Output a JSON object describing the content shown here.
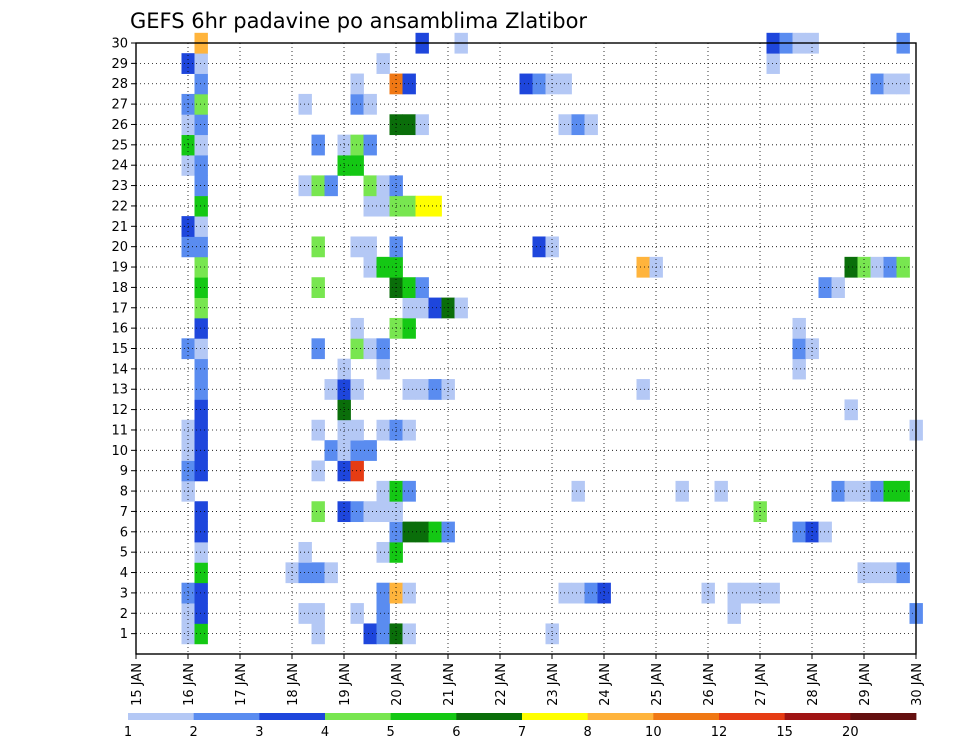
{
  "chart_data": {
    "type": "heatmap",
    "title": "GEFS 6hr padavine po ansamblima Zlatibor",
    "xlabel": "",
    "ylabel": "",
    "x_tick_labels": [
      "15 JAN",
      "16 JAN",
      "17 JAN",
      "18 JAN",
      "19 JAN",
      "20 JAN",
      "21 JAN",
      "22 JAN",
      "23 JAN",
      "24 JAN",
      "25 JAN",
      "26 JAN",
      "27 JAN",
      "28 JAN",
      "29 JAN",
      "30 JAN"
    ],
    "x_range_days": [
      15,
      30
    ],
    "y_tick_labels": [
      1,
      2,
      3,
      4,
      5,
      6,
      7,
      8,
      9,
      10,
      11,
      12,
      13,
      14,
      15,
      16,
      17,
      18,
      19,
      20,
      21,
      22,
      23,
      24,
      25,
      26,
      27,
      28,
      29,
      30
    ],
    "y_range_members": [
      0,
      30
    ],
    "grid": "dotted",
    "legend": {
      "placement": "bottom",
      "levels": [
        "1",
        "2",
        "3",
        "4",
        "5",
        "6",
        "7",
        "8",
        "10",
        "12",
        "15",
        "20"
      ],
      "colors": [
        "#b4c8f5",
        "#5a8cf0",
        "#1e46dc",
        "#78e650",
        "#14c814",
        "#0a6e0a",
        "#ffff00",
        "#ffb43c",
        "#f07814",
        "#e63c14",
        "#a01414",
        "#641010"
      ]
    },
    "cells_description": "value = color class index (1..12) per 6-hour step per ensemble member",
    "cells": [
      {
        "member": 1,
        "day": 16.0,
        "cls": 1
      },
      {
        "member": 1,
        "day": 16.25,
        "cls": 5
      },
      {
        "member": 1,
        "day": 18.5,
        "cls": 1
      },
      {
        "member": 1,
        "day": 19.5,
        "cls": 3
      },
      {
        "member": 1,
        "day": 19.75,
        "cls": 2
      },
      {
        "member": 1,
        "day": 20.0,
        "cls": 6
      },
      {
        "member": 1,
        "day": 20.25,
        "cls": 1
      },
      {
        "member": 1,
        "day": 23.0,
        "cls": 1
      },
      {
        "member": 2,
        "day": 16.0,
        "cls": 1
      },
      {
        "member": 2,
        "day": 16.25,
        "cls": 3
      },
      {
        "member": 2,
        "day": 18.25,
        "cls": 1
      },
      {
        "member": 2,
        "day": 18.5,
        "cls": 1
      },
      {
        "member": 2,
        "day": 19.25,
        "cls": 1
      },
      {
        "member": 2,
        "day": 19.75,
        "cls": 2
      },
      {
        "member": 2,
        "day": 26.5,
        "cls": 1
      },
      {
        "member": 2,
        "day": 30.0,
        "cls": 2
      },
      {
        "member": 3,
        "day": 16.0,
        "cls": 2
      },
      {
        "member": 3,
        "day": 16.25,
        "cls": 3
      },
      {
        "member": 3,
        "day": 19.75,
        "cls": 2
      },
      {
        "member": 3,
        "day": 20.0,
        "cls": 8
      },
      {
        "member": 3,
        "day": 20.25,
        "cls": 1
      },
      {
        "member": 3,
        "day": 23.25,
        "cls": 1
      },
      {
        "member": 3,
        "day": 23.5,
        "cls": 1
      },
      {
        "member": 3,
        "day": 23.75,
        "cls": 2
      },
      {
        "member": 3,
        "day": 24.0,
        "cls": 3
      },
      {
        "member": 3,
        "day": 26.0,
        "cls": 1
      },
      {
        "member": 3,
        "day": 26.5,
        "cls": 1
      },
      {
        "member": 3,
        "day": 26.75,
        "cls": 1
      },
      {
        "member": 3,
        "day": 27.0,
        "cls": 1
      },
      {
        "member": 3,
        "day": 27.25,
        "cls": 1
      },
      {
        "member": 4,
        "day": 16.25,
        "cls": 5
      },
      {
        "member": 4,
        "day": 18.0,
        "cls": 1
      },
      {
        "member": 4,
        "day": 18.25,
        "cls": 2
      },
      {
        "member": 4,
        "day": 18.5,
        "cls": 2
      },
      {
        "member": 4,
        "day": 18.75,
        "cls": 1
      },
      {
        "member": 4,
        "day": 29.0,
        "cls": 1
      },
      {
        "member": 4,
        "day": 29.25,
        "cls": 1
      },
      {
        "member": 4,
        "day": 29.5,
        "cls": 1
      },
      {
        "member": 4,
        "day": 29.75,
        "cls": 2
      },
      {
        "member": 5,
        "day": 16.25,
        "cls": 1
      },
      {
        "member": 5,
        "day": 18.25,
        "cls": 1
      },
      {
        "member": 5,
        "day": 19.75,
        "cls": 1
      },
      {
        "member": 5,
        "day": 20.0,
        "cls": 5
      },
      {
        "member": 6,
        "day": 16.25,
        "cls": 3
      },
      {
        "member": 6,
        "day": 20.0,
        "cls": 2
      },
      {
        "member": 6,
        "day": 20.25,
        "cls": 6
      },
      {
        "member": 6,
        "day": 20.5,
        "cls": 6
      },
      {
        "member": 6,
        "day": 20.75,
        "cls": 5
      },
      {
        "member": 6,
        "day": 21.0,
        "cls": 2
      },
      {
        "member": 6,
        "day": 27.75,
        "cls": 2
      },
      {
        "member": 6,
        "day": 28.0,
        "cls": 3
      },
      {
        "member": 6,
        "day": 28.25,
        "cls": 1
      },
      {
        "member": 7,
        "day": 16.25,
        "cls": 3
      },
      {
        "member": 7,
        "day": 18.5,
        "cls": 4
      },
      {
        "member": 7,
        "day": 19.0,
        "cls": 3
      },
      {
        "member": 7,
        "day": 19.25,
        "cls": 2
      },
      {
        "member": 7,
        "day": 19.5,
        "cls": 1
      },
      {
        "member": 7,
        "day": 19.75,
        "cls": 1
      },
      {
        "member": 7,
        "day": 20.0,
        "cls": 1
      },
      {
        "member": 7,
        "day": 27.0,
        "cls": 4
      },
      {
        "member": 8,
        "day": 16.0,
        "cls": 1
      },
      {
        "member": 8,
        "day": 19.75,
        "cls": 1
      },
      {
        "member": 8,
        "day": 20.0,
        "cls": 5
      },
      {
        "member": 8,
        "day": 20.25,
        "cls": 2
      },
      {
        "member": 8,
        "day": 23.5,
        "cls": 1
      },
      {
        "member": 8,
        "day": 25.5,
        "cls": 1
      },
      {
        "member": 8,
        "day": 26.25,
        "cls": 1
      },
      {
        "member": 8,
        "day": 28.5,
        "cls": 2
      },
      {
        "member": 8,
        "day": 28.75,
        "cls": 1
      },
      {
        "member": 8,
        "day": 29.0,
        "cls": 1
      },
      {
        "member": 8,
        "day": 29.25,
        "cls": 2
      },
      {
        "member": 8,
        "day": 29.5,
        "cls": 5
      },
      {
        "member": 8,
        "day": 29.75,
        "cls": 5
      },
      {
        "member": 9,
        "day": 16.0,
        "cls": 2
      },
      {
        "member": 9,
        "day": 16.25,
        "cls": 3
      },
      {
        "member": 9,
        "day": 18.5,
        "cls": 1
      },
      {
        "member": 9,
        "day": 19.0,
        "cls": 3
      },
      {
        "member": 9,
        "day": 19.25,
        "cls": 10
      },
      {
        "member": 10,
        "day": 16.0,
        "cls": 1
      },
      {
        "member": 10,
        "day": 16.25,
        "cls": 3
      },
      {
        "member": 10,
        "day": 18.75,
        "cls": 2
      },
      {
        "member": 10,
        "day": 19.0,
        "cls": 1
      },
      {
        "member": 10,
        "day": 19.25,
        "cls": 2
      },
      {
        "member": 10,
        "day": 19.5,
        "cls": 2
      },
      {
        "member": 11,
        "day": 16.0,
        "cls": 1
      },
      {
        "member": 11,
        "day": 16.25,
        "cls": 3
      },
      {
        "member": 11,
        "day": 18.5,
        "cls": 1
      },
      {
        "member": 11,
        "day": 19.0,
        "cls": 1
      },
      {
        "member": 11,
        "day": 19.25,
        "cls": 1
      },
      {
        "member": 11,
        "day": 19.75,
        "cls": 1
      },
      {
        "member": 11,
        "day": 20.0,
        "cls": 2
      },
      {
        "member": 11,
        "day": 20.25,
        "cls": 1
      },
      {
        "member": 11,
        "day": 30.0,
        "cls": 1
      },
      {
        "member": 12,
        "day": 16.25,
        "cls": 3
      },
      {
        "member": 12,
        "day": 19.0,
        "cls": 6
      },
      {
        "member": 12,
        "day": 28.75,
        "cls": 1
      },
      {
        "member": 13,
        "day": 16.25,
        "cls": 2
      },
      {
        "member": 13,
        "day": 18.75,
        "cls": 1
      },
      {
        "member": 13,
        "day": 19.0,
        "cls": 3
      },
      {
        "member": 13,
        "day": 19.25,
        "cls": 1
      },
      {
        "member": 13,
        "day": 20.25,
        "cls": 1
      },
      {
        "member": 13,
        "day": 20.5,
        "cls": 1
      },
      {
        "member": 13,
        "day": 20.75,
        "cls": 2
      },
      {
        "member": 13,
        "day": 21.0,
        "cls": 1
      },
      {
        "member": 13,
        "day": 24.75,
        "cls": 1
      },
      {
        "member": 14,
        "day": 16.25,
        "cls": 2
      },
      {
        "member": 14,
        "day": 19.0,
        "cls": 1
      },
      {
        "member": 14,
        "day": 19.75,
        "cls": 1
      },
      {
        "member": 14,
        "day": 27.75,
        "cls": 1
      },
      {
        "member": 15,
        "day": 16.0,
        "cls": 2
      },
      {
        "member": 15,
        "day": 16.25,
        "cls": 1
      },
      {
        "member": 15,
        "day": 18.5,
        "cls": 2
      },
      {
        "member": 15,
        "day": 19.25,
        "cls": 4
      },
      {
        "member": 15,
        "day": 19.5,
        "cls": 1
      },
      {
        "member": 15,
        "day": 19.75,
        "cls": 2
      },
      {
        "member": 15,
        "day": 27.75,
        "cls": 2
      },
      {
        "member": 15,
        "day": 28.0,
        "cls": 1
      },
      {
        "member": 16,
        "day": 16.25,
        "cls": 3
      },
      {
        "member": 16,
        "day": 19.25,
        "cls": 1
      },
      {
        "member": 16,
        "day": 20.0,
        "cls": 4
      },
      {
        "member": 16,
        "day": 20.25,
        "cls": 5
      },
      {
        "member": 16,
        "day": 27.75,
        "cls": 1
      },
      {
        "member": 17,
        "day": 16.25,
        "cls": 4
      },
      {
        "member": 17,
        "day": 20.25,
        "cls": 1
      },
      {
        "member": 17,
        "day": 20.5,
        "cls": 1
      },
      {
        "member": 17,
        "day": 20.75,
        "cls": 3
      },
      {
        "member": 17,
        "day": 21.0,
        "cls": 6
      },
      {
        "member": 17,
        "day": 21.25,
        "cls": 1
      },
      {
        "member": 18,
        "day": 16.25,
        "cls": 5
      },
      {
        "member": 18,
        "day": 18.5,
        "cls": 4
      },
      {
        "member": 18,
        "day": 20.0,
        "cls": 6
      },
      {
        "member": 18,
        "day": 20.25,
        "cls": 5
      },
      {
        "member": 18,
        "day": 20.5,
        "cls": 2
      },
      {
        "member": 18,
        "day": 28.25,
        "cls": 2
      },
      {
        "member": 18,
        "day": 28.5,
        "cls": 1
      },
      {
        "member": 19,
        "day": 16.25,
        "cls": 4
      },
      {
        "member": 19,
        "day": 19.5,
        "cls": 1
      },
      {
        "member": 19,
        "day": 19.75,
        "cls": 5
      },
      {
        "member": 19,
        "day": 20.0,
        "cls": 5
      },
      {
        "member": 19,
        "day": 24.75,
        "cls": 8
      },
      {
        "member": 19,
        "day": 25.0,
        "cls": 1
      },
      {
        "member": 19,
        "day": 28.75,
        "cls": 6
      },
      {
        "member": 19,
        "day": 29.0,
        "cls": 4
      },
      {
        "member": 19,
        "day": 29.25,
        "cls": 1
      },
      {
        "member": 19,
        "day": 29.5,
        "cls": 2
      },
      {
        "member": 19,
        "day": 29.75,
        "cls": 4
      },
      {
        "member": 20,
        "day": 16.0,
        "cls": 2
      },
      {
        "member": 20,
        "day": 16.25,
        "cls": 2
      },
      {
        "member": 20,
        "day": 18.5,
        "cls": 4
      },
      {
        "member": 20,
        "day": 19.25,
        "cls": 1
      },
      {
        "member": 20,
        "day": 19.5,
        "cls": 1
      },
      {
        "member": 20,
        "day": 20.0,
        "cls": 2
      },
      {
        "member": 20,
        "day": 22.75,
        "cls": 3
      },
      {
        "member": 20,
        "day": 23.0,
        "cls": 1
      },
      {
        "member": 21,
        "day": 16.0,
        "cls": 3
      },
      {
        "member": 21,
        "day": 16.25,
        "cls": 1
      },
      {
        "member": 22,
        "day": 16.25,
        "cls": 5
      },
      {
        "member": 22,
        "day": 19.5,
        "cls": 1
      },
      {
        "member": 22,
        "day": 19.75,
        "cls": 1
      },
      {
        "member": 22,
        "day": 20.0,
        "cls": 4
      },
      {
        "member": 22,
        "day": 20.25,
        "cls": 4
      },
      {
        "member": 22,
        "day": 20.5,
        "cls": 7
      },
      {
        "member": 22,
        "day": 20.75,
        "cls": 7
      },
      {
        "member": 23,
        "day": 16.25,
        "cls": 2
      },
      {
        "member": 23,
        "day": 18.25,
        "cls": 1
      },
      {
        "member": 23,
        "day": 18.5,
        "cls": 4
      },
      {
        "member": 23,
        "day": 18.75,
        "cls": 2
      },
      {
        "member": 23,
        "day": 19.5,
        "cls": 4
      },
      {
        "member": 23,
        "day": 19.75,
        "cls": 1
      },
      {
        "member": 23,
        "day": 20.0,
        "cls": 2
      },
      {
        "member": 24,
        "day": 16.0,
        "cls": 1
      },
      {
        "member": 24,
        "day": 16.25,
        "cls": 2
      },
      {
        "member": 24,
        "day": 19.0,
        "cls": 5
      },
      {
        "member": 24,
        "day": 19.25,
        "cls": 5
      },
      {
        "member": 25,
        "day": 16.0,
        "cls": 5
      },
      {
        "member": 25,
        "day": 16.25,
        "cls": 1
      },
      {
        "member": 25,
        "day": 18.5,
        "cls": 2
      },
      {
        "member": 25,
        "day": 19.0,
        "cls": 1
      },
      {
        "member": 25,
        "day": 19.25,
        "cls": 4
      },
      {
        "member": 25,
        "day": 19.5,
        "cls": 2
      },
      {
        "member": 26,
        "day": 16.0,
        "cls": 1
      },
      {
        "member": 26,
        "day": 16.25,
        "cls": 2
      },
      {
        "member": 26,
        "day": 20.0,
        "cls": 6
      },
      {
        "member": 26,
        "day": 20.25,
        "cls": 6
      },
      {
        "member": 26,
        "day": 20.5,
        "cls": 1
      },
      {
        "member": 26,
        "day": 23.25,
        "cls": 1
      },
      {
        "member": 26,
        "day": 23.5,
        "cls": 2
      },
      {
        "member": 26,
        "day": 23.75,
        "cls": 1
      },
      {
        "member": 27,
        "day": 16.0,
        "cls": 2
      },
      {
        "member": 27,
        "day": 16.25,
        "cls": 4
      },
      {
        "member": 27,
        "day": 18.25,
        "cls": 1
      },
      {
        "member": 27,
        "day": 19.25,
        "cls": 2
      },
      {
        "member": 27,
        "day": 19.5,
        "cls": 1
      },
      {
        "member": 28,
        "day": 16.25,
        "cls": 2
      },
      {
        "member": 28,
        "day": 19.25,
        "cls": 1
      },
      {
        "member": 28,
        "day": 20.0,
        "cls": 9
      },
      {
        "member": 28,
        "day": 20.25,
        "cls": 3
      },
      {
        "member": 28,
        "day": 22.5,
        "cls": 3
      },
      {
        "member": 28,
        "day": 22.75,
        "cls": 2
      },
      {
        "member": 28,
        "day": 23.0,
        "cls": 1
      },
      {
        "member": 28,
        "day": 23.25,
        "cls": 1
      },
      {
        "member": 28,
        "day": 29.25,
        "cls": 2
      },
      {
        "member": 28,
        "day": 29.5,
        "cls": 1
      },
      {
        "member": 28,
        "day": 29.75,
        "cls": 1
      },
      {
        "member": 29,
        "day": 16.0,
        "cls": 3
      },
      {
        "member": 29,
        "day": 16.25,
        "cls": 1
      },
      {
        "member": 29,
        "day": 19.75,
        "cls": 1
      },
      {
        "member": 29,
        "day": 27.25,
        "cls": 1
      },
      {
        "member": 30,
        "day": 16.25,
        "cls": 8
      },
      {
        "member": 30,
        "day": 20.5,
        "cls": 3
      },
      {
        "member": 30,
        "day": 21.25,
        "cls": 1
      },
      {
        "member": 30,
        "day": 27.25,
        "cls": 3
      },
      {
        "member": 30,
        "day": 27.5,
        "cls": 2
      },
      {
        "member": 30,
        "day": 27.75,
        "cls": 1
      },
      {
        "member": 30,
        "day": 28.0,
        "cls": 1
      },
      {
        "member": 30,
        "day": 29.75,
        "cls": 2
      }
    ]
  }
}
